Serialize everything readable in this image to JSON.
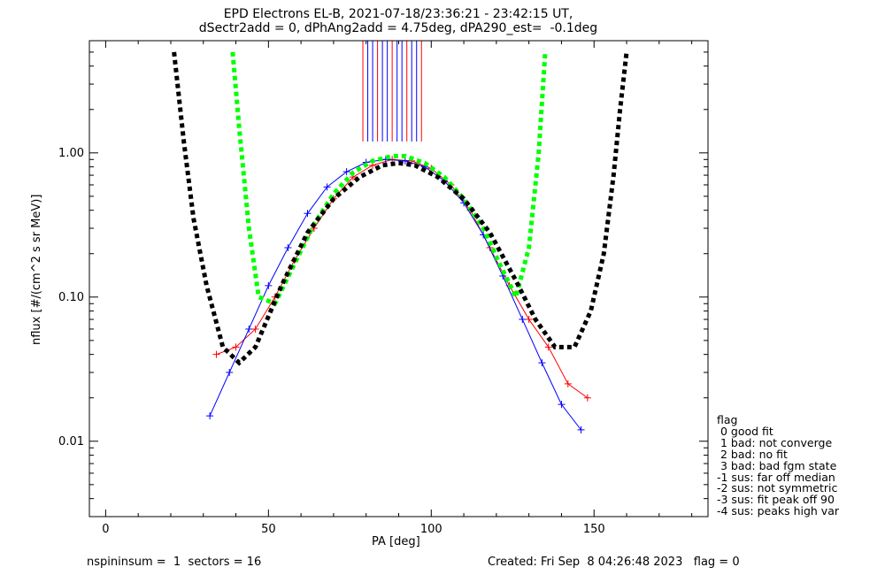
{
  "title_line1": "EPD Electrons EL-B, 2021-07-18/23:36:21 - 23:42:15 UT,",
  "title_line2": "dSectr2add = 0, dPhAng2add = 4.75deg, dPA290_est=  -0.1deg",
  "footer_left": "nspininsum =  1  sectors = 16",
  "footer_right": "Created: Fri Sep  8 04:26:48 2023   flag = 0",
  "legend": {
    "title": "flag",
    "items": [
      " 0 good fit",
      " 1 bad: not converge",
      " 2 bad: no fit",
      " 3 bad: bad fgm state",
      "-1 sus: far off median",
      "-2 sus: not symmetric",
      "-3 sus: fit peak off 90",
      "-4 sus: peaks high var"
    ]
  },
  "colors": {
    "series_red": "#ff0000",
    "series_blue": "#0000ff",
    "fit_green": "#00ff00",
    "fit_black": "#000000"
  },
  "chart_data": {
    "type": "line",
    "xlabel": "PA [deg]",
    "ylabel": "nflux [#/(cm^2 s sr MeV)]",
    "xlim": [
      -5,
      185
    ],
    "ylim": [
      0.003,
      6.0
    ],
    "yscale": "log",
    "x_ticks": [
      0,
      50,
      100,
      150
    ],
    "y_ticks": [
      {
        "value": 0.01,
        "label": "0.01"
      },
      {
        "value": 0.1,
        "label": "0.10"
      },
      {
        "value": 1.0,
        "label": "1.00"
      }
    ],
    "grid": false,
    "series": [
      {
        "color": "red",
        "x": [
          34,
          40,
          46,
          52,
          58,
          64,
          70,
          76,
          82,
          88,
          94,
          100,
          106,
          112,
          118,
          124,
          130,
          136,
          142,
          148
        ],
        "y": [
          0.04,
          0.045,
          0.06,
          0.1,
          0.18,
          0.3,
          0.48,
          0.68,
          0.82,
          0.9,
          0.88,
          0.78,
          0.6,
          0.4,
          0.22,
          0.12,
          0.07,
          0.045,
          0.025,
          0.02
        ]
      },
      {
        "color": "blue",
        "x": [
          32,
          38,
          44,
          50,
          56,
          62,
          68,
          74,
          80,
          86,
          92,
          98,
          104,
          110,
          116,
          122,
          128,
          134,
          140,
          146
        ],
        "y": [
          0.015,
          0.03,
          0.06,
          0.12,
          0.22,
          0.38,
          0.58,
          0.74,
          0.86,
          0.9,
          0.88,
          0.8,
          0.64,
          0.45,
          0.27,
          0.14,
          0.07,
          0.035,
          0.018,
          0.012
        ]
      },
      {
        "color": "green",
        "style": "dashed",
        "x": [
          39,
          41,
          44,
          47,
          52,
          58,
          64,
          70,
          76,
          82,
          88,
          92,
          98,
          104,
          110,
          116,
          121,
          126,
          130,
          133,
          135
        ],
        "y": [
          5.0,
          1.5,
          0.3,
          0.1,
          0.09,
          0.17,
          0.32,
          0.52,
          0.73,
          0.88,
          0.95,
          0.95,
          0.85,
          0.68,
          0.48,
          0.3,
          0.17,
          0.1,
          0.22,
          1.0,
          5.0
        ]
      },
      {
        "color": "black",
        "style": "dashed",
        "x": [
          21,
          24,
          27,
          31,
          36,
          41,
          46,
          54,
          62,
          70,
          78,
          85,
          90,
          95,
          102,
          110,
          118,
          126,
          132,
          138,
          144,
          149,
          153,
          156,
          158,
          160
        ],
        "y": [
          5.0,
          1.2,
          0.35,
          0.12,
          0.045,
          0.035,
          0.045,
          0.12,
          0.28,
          0.48,
          0.68,
          0.82,
          0.85,
          0.82,
          0.68,
          0.48,
          0.28,
          0.13,
          0.07,
          0.045,
          0.045,
          0.08,
          0.2,
          0.7,
          2.0,
          5.0
        ]
      }
    ],
    "spikes": {
      "x_start": 79,
      "x_end": 97,
      "y_bottom": 1.2
    }
  }
}
